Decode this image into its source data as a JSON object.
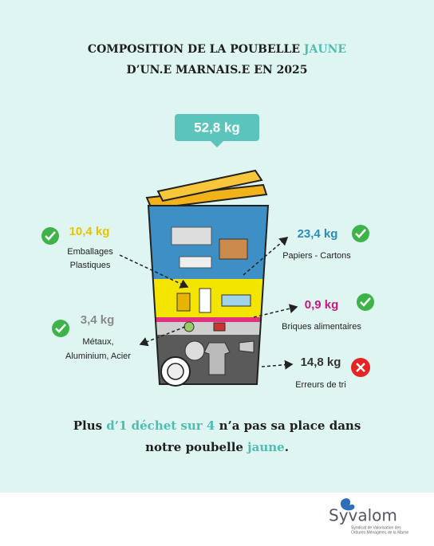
{
  "header": {
    "title_start": "COMPOSITION DE LA POUBELLE ",
    "title_highlight": "JAUNE",
    "title_line2": "D’UN.E MARNAIS.E EN 2025"
  },
  "total": "52,8 kg",
  "items": [
    {
      "weight": "10,4 kg",
      "label": [
        "Emballages",
        "Plastiques"
      ]
    },
    {
      "weight": "23,4 kg",
      "label": [
        "Papiers - Cartons"
      ]
    },
    {
      "weight": "0,9 kg",
      "label": [
        "Briques alimentaires"
      ]
    },
    {
      "weight": "3,4 kg",
      "label": [
        "Métaux,",
        "Aluminium, Acier"
      ]
    },
    {
      "weight": "14,8 kg",
      "label": [
        "Erreurs de tri"
      ]
    }
  ],
  "message": {
    "part1": "Plus ",
    "highlight1": "d’1 déchet sur 4",
    "part2": " n’a pas sa place dans",
    "part3": "notre poubelle ",
    "highlight2": "jaune",
    "part4": "."
  },
  "footer": {
    "logo": "Syvalom",
    "tagline": [
      "Syndicat de Valorisation des",
      "Ordures Ménagères de la Marne"
    ]
  }
}
